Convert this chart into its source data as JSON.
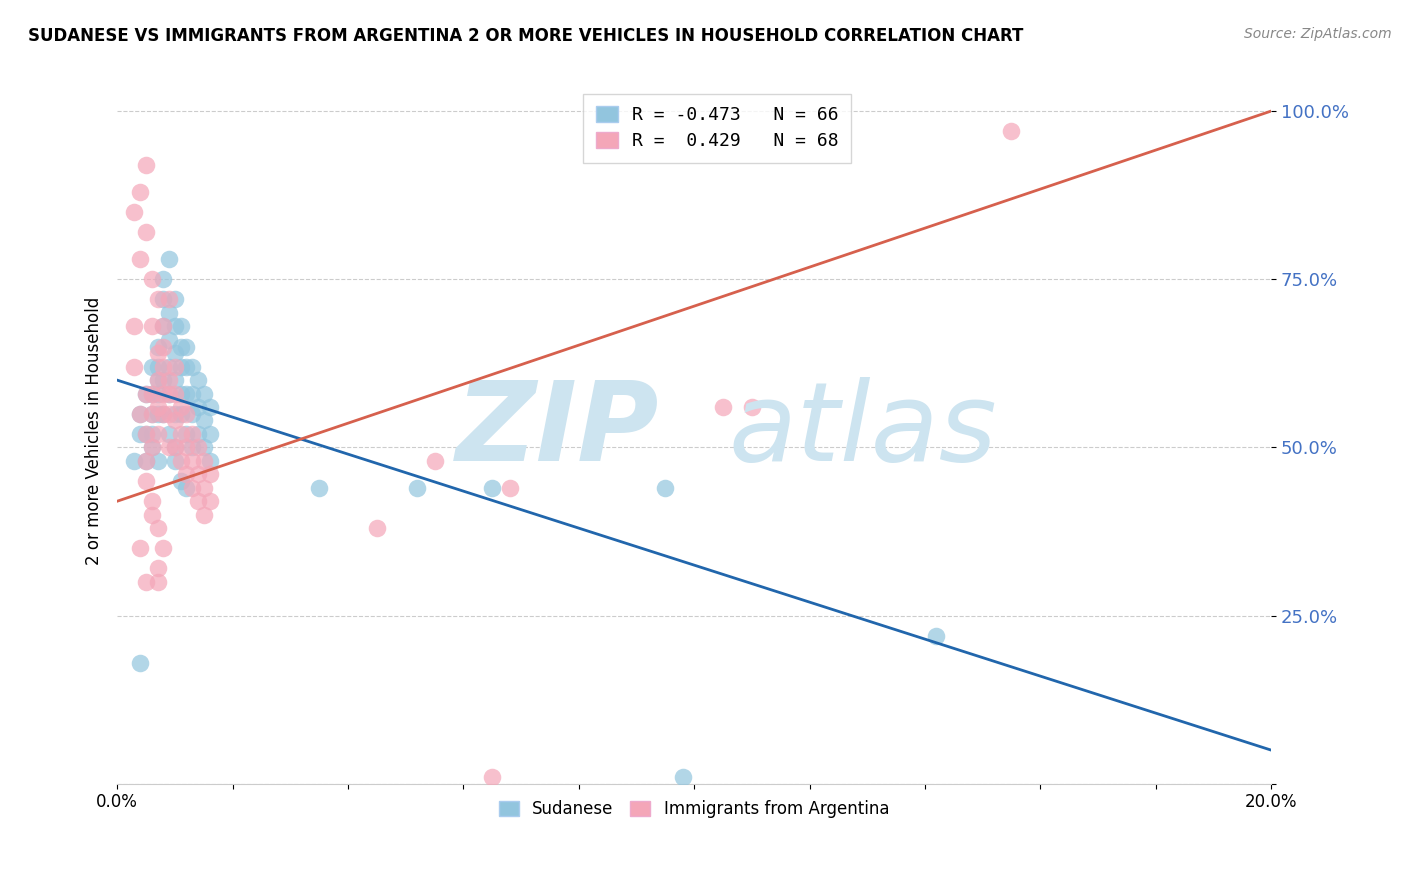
{
  "title": "SUDANESE VS IMMIGRANTS FROM ARGENTINA 2 OR MORE VEHICLES IN HOUSEHOLD CORRELATION CHART",
  "source": "Source: ZipAtlas.com",
  "ylabel": "2 or more Vehicles in Household",
  "xlim": [
    0.0,
    0.2
  ],
  "ylim": [
    0.0,
    1.05
  ],
  "ytick_vals": [
    0.0,
    0.25,
    0.5,
    0.75,
    1.0
  ],
  "ytick_labels": [
    "",
    "25.0%",
    "50.0%",
    "75.0%",
    "100.0%"
  ],
  "xtick_vals": [
    0.0,
    0.02,
    0.04,
    0.06,
    0.08,
    0.1,
    0.12,
    0.14,
    0.16,
    0.18,
    0.2
  ],
  "xtick_labels": [
    "0.0%",
    "",
    "",
    "",
    "",
    "",
    "",
    "",
    "",
    "",
    "20.0%"
  ],
  "legend_blue_label": "R = -0.473   N = 66",
  "legend_pink_label": "R =  0.429   N = 68",
  "legend_label_blue": "Sudanese",
  "legend_label_pink": "Immigrants from Argentina",
  "blue_color": "#92c5de",
  "pink_color": "#f4a6b8",
  "blue_line_color": "#2166ac",
  "pink_line_color": "#d6604d",
  "blue_scatter": [
    [
      0.005,
      0.52
    ],
    [
      0.006,
      0.55
    ],
    [
      0.007,
      0.6
    ],
    [
      0.007,
      0.65
    ],
    [
      0.008,
      0.68
    ],
    [
      0.008,
      0.72
    ],
    [
      0.009,
      0.7
    ],
    [
      0.009,
      0.66
    ],
    [
      0.009,
      0.62
    ],
    [
      0.01,
      0.72
    ],
    [
      0.01,
      0.68
    ],
    [
      0.01,
      0.64
    ],
    [
      0.01,
      0.6
    ],
    [
      0.011,
      0.68
    ],
    [
      0.011,
      0.65
    ],
    [
      0.011,
      0.62
    ],
    [
      0.011,
      0.58
    ],
    [
      0.012,
      0.65
    ],
    [
      0.012,
      0.62
    ],
    [
      0.012,
      0.58
    ],
    [
      0.013,
      0.62
    ],
    [
      0.013,
      0.58
    ],
    [
      0.013,
      0.55
    ],
    [
      0.014,
      0.6
    ],
    [
      0.014,
      0.56
    ],
    [
      0.014,
      0.52
    ],
    [
      0.015,
      0.58
    ],
    [
      0.015,
      0.54
    ],
    [
      0.015,
      0.5
    ],
    [
      0.016,
      0.56
    ],
    [
      0.016,
      0.52
    ],
    [
      0.016,
      0.48
    ],
    [
      0.006,
      0.5
    ],
    [
      0.007,
      0.55
    ],
    [
      0.008,
      0.6
    ],
    [
      0.009,
      0.58
    ],
    [
      0.01,
      0.55
    ],
    [
      0.01,
      0.5
    ],
    [
      0.011,
      0.55
    ],
    [
      0.012,
      0.52
    ],
    [
      0.013,
      0.5
    ],
    [
      0.008,
      0.75
    ],
    [
      0.009,
      0.78
    ],
    [
      0.005,
      0.48
    ],
    [
      0.006,
      0.52
    ],
    [
      0.007,
      0.58
    ],
    [
      0.008,
      0.55
    ],
    [
      0.009,
      0.52
    ],
    [
      0.01,
      0.48
    ],
    [
      0.011,
      0.45
    ],
    [
      0.012,
      0.44
    ],
    [
      0.006,
      0.58
    ],
    [
      0.007,
      0.62
    ],
    [
      0.004,
      0.52
    ],
    [
      0.005,
      0.58
    ],
    [
      0.006,
      0.62
    ],
    [
      0.003,
      0.48
    ],
    [
      0.004,
      0.55
    ],
    [
      0.007,
      0.48
    ],
    [
      0.004,
      0.18
    ],
    [
      0.142,
      0.22
    ],
    [
      0.095,
      0.44
    ],
    [
      0.065,
      0.44
    ],
    [
      0.052,
      0.44
    ],
    [
      0.035,
      0.44
    ],
    [
      0.098,
      0.01
    ]
  ],
  "pink_scatter": [
    [
      0.005,
      0.58
    ],
    [
      0.006,
      0.55
    ],
    [
      0.007,
      0.52
    ],
    [
      0.007,
      0.6
    ],
    [
      0.008,
      0.58
    ],
    [
      0.008,
      0.65
    ],
    [
      0.008,
      0.55
    ],
    [
      0.009,
      0.6
    ],
    [
      0.009,
      0.55
    ],
    [
      0.009,
      0.5
    ],
    [
      0.01,
      0.58
    ],
    [
      0.01,
      0.54
    ],
    [
      0.01,
      0.5
    ],
    [
      0.011,
      0.56
    ],
    [
      0.011,
      0.52
    ],
    [
      0.011,
      0.48
    ],
    [
      0.012,
      0.55
    ],
    [
      0.012,
      0.5
    ],
    [
      0.012,
      0.46
    ],
    [
      0.013,
      0.52
    ],
    [
      0.013,
      0.48
    ],
    [
      0.013,
      0.44
    ],
    [
      0.014,
      0.5
    ],
    [
      0.014,
      0.46
    ],
    [
      0.014,
      0.42
    ],
    [
      0.015,
      0.48
    ],
    [
      0.015,
      0.44
    ],
    [
      0.015,
      0.4
    ],
    [
      0.016,
      0.46
    ],
    [
      0.016,
      0.42
    ],
    [
      0.006,
      0.5
    ],
    [
      0.007,
      0.56
    ],
    [
      0.008,
      0.62
    ],
    [
      0.009,
      0.58
    ],
    [
      0.01,
      0.62
    ],
    [
      0.005,
      0.52
    ],
    [
      0.006,
      0.58
    ],
    [
      0.007,
      0.64
    ],
    [
      0.004,
      0.78
    ],
    [
      0.005,
      0.82
    ],
    [
      0.006,
      0.75
    ],
    [
      0.007,
      0.72
    ],
    [
      0.006,
      0.68
    ],
    [
      0.008,
      0.68
    ],
    [
      0.009,
      0.72
    ],
    [
      0.004,
      0.88
    ],
    [
      0.005,
      0.92
    ],
    [
      0.003,
      0.85
    ],
    [
      0.004,
      0.35
    ],
    [
      0.005,
      0.3
    ],
    [
      0.006,
      0.4
    ],
    [
      0.007,
      0.32
    ],
    [
      0.003,
      0.68
    ],
    [
      0.003,
      0.62
    ],
    [
      0.005,
      0.45
    ],
    [
      0.006,
      0.42
    ],
    [
      0.007,
      0.38
    ],
    [
      0.008,
      0.35
    ],
    [
      0.004,
      0.55
    ],
    [
      0.005,
      0.48
    ],
    [
      0.007,
      0.3
    ],
    [
      0.155,
      0.97
    ],
    [
      0.11,
      0.56
    ],
    [
      0.068,
      0.44
    ],
    [
      0.055,
      0.48
    ],
    [
      0.045,
      0.38
    ],
    [
      0.065,
      0.01
    ],
    [
      0.105,
      0.56
    ]
  ],
  "blue_trendline_x": [
    0.0,
    0.2
  ],
  "blue_trendline_y": [
    0.6,
    0.05
  ],
  "pink_trendline_x": [
    0.0,
    0.2
  ],
  "pink_trendline_y": [
    0.42,
    1.0
  ]
}
